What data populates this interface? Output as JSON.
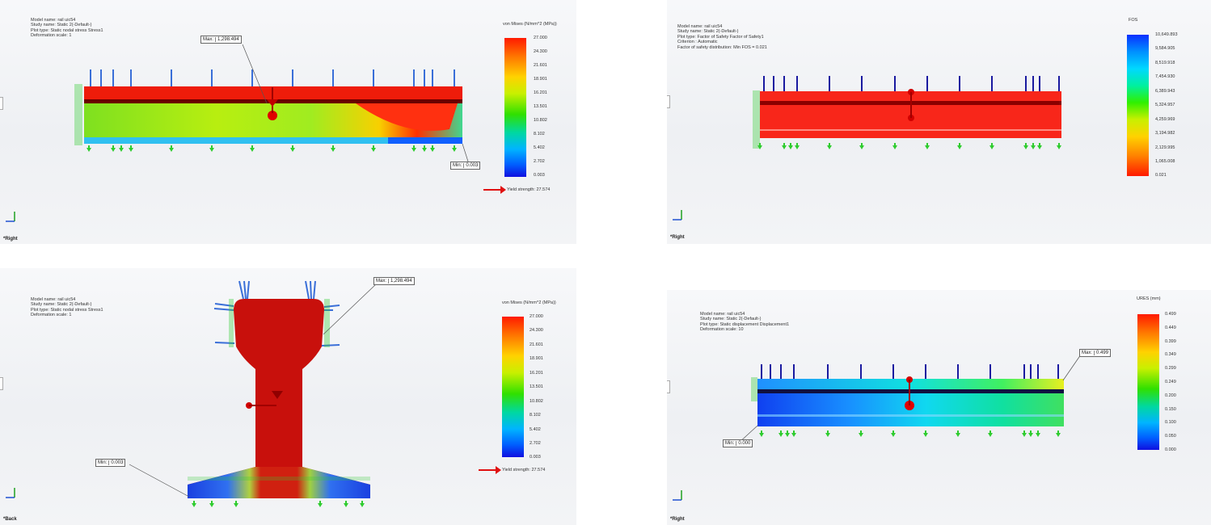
{
  "panels": {
    "stress_right": {
      "info": [
        "Model name: rail uic54",
        "Study name: Static 2(-Default-)",
        "Plot type: Static nodal stress Stress1",
        "Deformation scale: 1"
      ],
      "legend_title": "von Mises (N/mm^2 (MPa))",
      "ticks": [
        "27.000",
        "24.300",
        "21.601",
        "18.901",
        "16.201",
        "13.501",
        "10.802",
        "8.102",
        "5.402",
        "2.702",
        "0.003"
      ],
      "max_label": "Max:",
      "max_value": "1,298.494",
      "min_label": "Min:",
      "min_value": "0.003",
      "yield_text": "Yield strength: 27.574",
      "view_label": "*Right"
    },
    "fos_right": {
      "info": [
        "Model name: rail uic54",
        "Study name: Static 2(-Default-)",
        "Plot type: Factor of Safety Factor of Safety1",
        "Criterion : Automatic",
        "Factor of safety distribution: Min FOS = 0.021"
      ],
      "legend_title": "FOS",
      "ticks": [
        "10,649.893",
        "9,584.905",
        "8,519.918",
        "7,454.930",
        "6,389.943",
        "5,324.957",
        "4,259.969",
        "3,194.982",
        "2,129.995",
        "1,065.008",
        "0.021"
      ],
      "view_label": "*Right"
    },
    "stress_back": {
      "info": [
        "Model name: rail uic54",
        "Study name: Static 2(-Default-)",
        "Plot type: Static nodal stress Stress1",
        "Deformation scale: 1"
      ],
      "legend_title": "von Mises (N/mm^2 (MPa))",
      "ticks": [
        "27.000",
        "24.300",
        "21.601",
        "18.901",
        "16.201",
        "13.501",
        "10.802",
        "8.102",
        "5.402",
        "2.702",
        "0.003"
      ],
      "max_label": "Max:",
      "max_value": "1,298.494",
      "min_label": "Min:",
      "min_value": "0.003",
      "yield_text": "Yield strength: 27.574",
      "view_label": "*Back"
    },
    "disp_right": {
      "info": [
        "Model name: rail uic54",
        "Study name: Static 2(-Default-)",
        "Plot type: Static displacement Displacement1",
        "Deformation scale: 10"
      ],
      "legend_title": "URES (mm)",
      "ticks": [
        "0.499",
        "0.449",
        "0.399",
        "0.349",
        "0.299",
        "0.249",
        "0.200",
        "0.150",
        "0.100",
        "0.050",
        "0.000"
      ],
      "max_label": "Max:",
      "max_value": "0.499",
      "min_label": "Min:",
      "min_value": "0.000",
      "view_label": "*Right"
    }
  },
  "colors": {
    "red": "#ff1a00",
    "fixture_green": "#2ecc2e",
    "load_blue": "#3a6fd8",
    "load_navy": "#1a1aa0"
  }
}
